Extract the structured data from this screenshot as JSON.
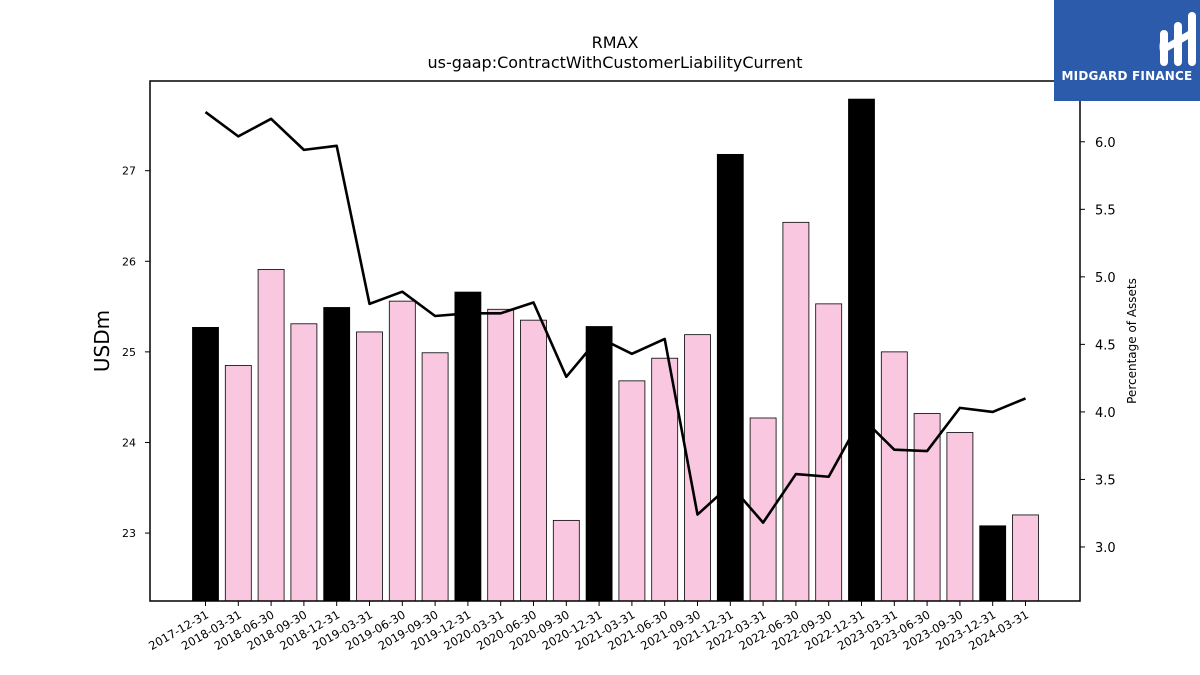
{
  "brand": {
    "name": "MIDGARD FINANCE",
    "bg_color": "#2c5bab"
  },
  "chart_data": {
    "type": "bar",
    "title": "RMAX",
    "subtitle": "us-gaap:ContractWithCustomerLiabilityCurrent",
    "ylabel": "USDm",
    "y2label": "Percentage of Assets",
    "ylim": [
      22.25,
      27.99
    ],
    "y2lim": [
      2.6,
      6.45
    ],
    "yticks": [
      23,
      24,
      25,
      26,
      27
    ],
    "y2ticks": [
      "3.0",
      "3.5",
      "4.0",
      "4.5",
      "5.0",
      "5.5",
      "6.0"
    ],
    "categories": [
      "2017-12-31",
      "2018-03-31",
      "2018-06-30",
      "2018-09-30",
      "2018-12-31",
      "2019-03-31",
      "2019-06-30",
      "2019-09-30",
      "2019-12-31",
      "2020-03-31",
      "2020-06-30",
      "2020-09-30",
      "2020-12-31",
      "2021-03-31",
      "2021-06-30",
      "2021-09-30",
      "2021-12-31",
      "2022-03-31",
      "2022-06-30",
      "2022-09-30",
      "2022-12-31",
      "2023-03-31",
      "2023-06-30",
      "2023-09-30",
      "2023-12-31",
      "2024-03-31"
    ],
    "series": [
      {
        "type": "bar",
        "axis": "left",
        "values": [
          25.27,
          24.85,
          25.91,
          25.31,
          25.49,
          25.22,
          25.56,
          24.99,
          25.66,
          25.47,
          25.35,
          23.14,
          25.28,
          24.68,
          24.93,
          25.19,
          27.18,
          24.27,
          26.43,
          25.53,
          27.79,
          25.0,
          24.32,
          24.11,
          23.08,
          23.2
        ],
        "colors": [
          "#000000",
          "#f9c8e0",
          "#f9c8e0",
          "#f9c8e0",
          "#000000",
          "#f9c8e0",
          "#f9c8e0",
          "#f9c8e0",
          "#000000",
          "#f9c8e0",
          "#f9c8e0",
          "#f9c8e0",
          "#000000",
          "#f9c8e0",
          "#f9c8e0",
          "#f9c8e0",
          "#000000",
          "#f9c8e0",
          "#f9c8e0",
          "#f9c8e0",
          "#000000",
          "#f9c8e0",
          "#f9c8e0",
          "#f9c8e0",
          "#000000",
          "#f9c8e0"
        ]
      },
      {
        "type": "line",
        "axis": "right",
        "color": "#000000",
        "values": [
          6.22,
          6.04,
          6.17,
          5.94,
          5.97,
          4.8,
          4.89,
          4.71,
          4.73,
          4.73,
          4.81,
          4.26,
          4.55,
          4.43,
          4.54,
          3.24,
          3.46,
          3.18,
          3.54,
          3.52,
          3.96,
          3.72,
          3.71,
          4.03,
          4.0,
          4.1
        ]
      }
    ],
    "grid": false,
    "bar_edge_color": "#000000"
  }
}
